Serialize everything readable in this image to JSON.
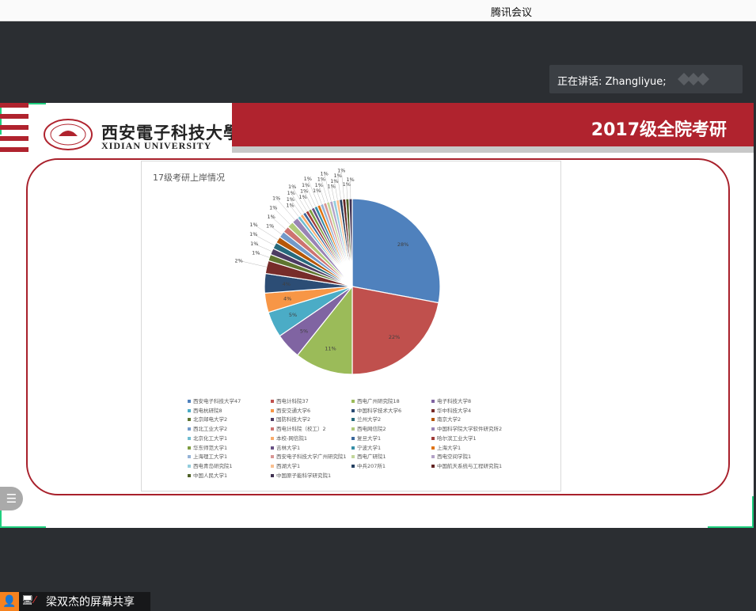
{
  "app": {
    "title": "腾讯会议"
  },
  "speaking": {
    "label": "正在讲话: Zhangliyue;"
  },
  "slide": {
    "university_cn": "西安電子科技大學",
    "university_en": "XIDIAN UNIVERSITY",
    "header_title": "2017级全院考研"
  },
  "share": {
    "label": "梁双杰的屏幕共享",
    "avatar_icon": "person-icon",
    "share_icon": "screen-share-icon",
    "mic_icon": "mic-muted-icon"
  },
  "chart_data": {
    "type": "pie",
    "title": "17级考研上岸情况",
    "legend_position": "bottom",
    "categories": [
      "西安电子科技大学",
      "西电计科院",
      "西电广州研究院",
      "电子科技大学",
      "西电杭研院",
      "西安交通大学",
      "中国科学技术大学",
      "华中科技大学",
      "北京邮电大学",
      "国防科技大学",
      "兰州大学",
      "南京大学",
      "西北工业大学",
      "西电计科院（校工）",
      "西电网信院",
      "中国科学院大学软件研究所",
      "北京化工大学",
      "本校-网信院",
      "复旦大学",
      "哈尔滨工业大学",
      "华东师范大学",
      "吉林大学",
      "宁波大学",
      "上海大学",
      "上海理工大学",
      "西安电子科技大学广州研究院",
      "西电广研院",
      "西电空间学院",
      "西电青岛研究院",
      "西湖大学",
      "中兵207所",
      "中国航天系统与工程研究院",
      "中国人民大学",
      "中国原子能科学研究院"
    ],
    "values": [
      47,
      37,
      18,
      8,
      8,
      6,
      6,
      4,
      2,
      2,
      2,
      2,
      2,
      2,
      2,
      2,
      1,
      1,
      1,
      1,
      1,
      1,
      1,
      1,
      1,
      1,
      1,
      1,
      1,
      1,
      1,
      1,
      1,
      1
    ],
    "colors": [
      "#4f81bd",
      "#c0504d",
      "#9bbb59",
      "#8064a2",
      "#4bacc6",
      "#f79646",
      "#2c4d75",
      "#772c2a",
      "#5f7530",
      "#4d3b62",
      "#276a7c",
      "#b65708",
      "#729aca",
      "#cd7371",
      "#afc97a",
      "#9983b5",
      "#6fbdd1",
      "#f9ab6b",
      "#3a679c",
      "#9f3b38",
      "#7e9d40",
      "#664f83",
      "#358ea6",
      "#e07311",
      "#95b3d7",
      "#d99694",
      "#c3d69b",
      "#b3a2c7",
      "#93cddd",
      "#fac090",
      "#254061",
      "#632523",
      "#4f6228",
      "#3f3151"
    ]
  }
}
